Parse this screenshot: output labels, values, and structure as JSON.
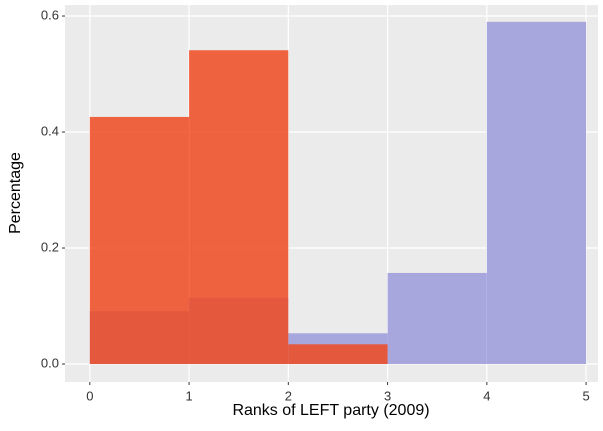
{
  "chart_data": {
    "type": "histogram",
    "x_label": "Ranks of LEFT party (2009)",
    "y_label": "Percentage",
    "bins": [
      0,
      1,
      2,
      3,
      4,
      5
    ],
    "series": [
      {
        "color": "#a3a2dc",
        "values": [
          0.091,
          0.114,
          0.053,
          0.157,
          0.59
        ]
      },
      {
        "color": "#ee4a22",
        "values": [
          0.426,
          0.541,
          0.034,
          0,
          0
        ]
      }
    ],
    "xlim": [
      -0.25,
      5.12
    ],
    "ylim": [
      -0.031,
      0.619
    ],
    "xticks": [
      0,
      1,
      2,
      3,
      4,
      5
    ],
    "yticks": [
      {
        "value": 0,
        "label": "0.0"
      },
      0.2,
      0.4,
      0.6
    ],
    "grid": true
  }
}
